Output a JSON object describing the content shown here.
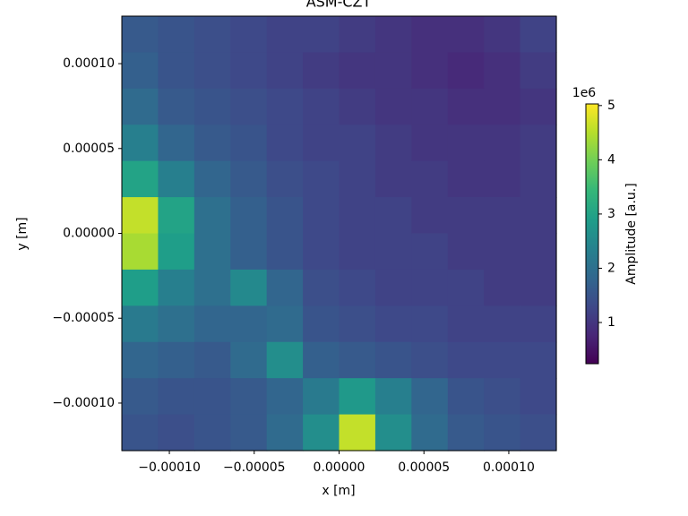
{
  "chart_data": {
    "type": "heatmap",
    "title": "ASM-CZT",
    "x_label": "x [m]",
    "y_label": "y [m]",
    "xlim": [
      -0.000128,
      0.000128
    ],
    "ylim": [
      -0.000128,
      0.000128
    ],
    "xticks": [
      {
        "value": -0.0001,
        "label": "−0.00010"
      },
      {
        "value": -5e-05,
        "label": "−0.00005"
      },
      {
        "value": 0,
        "label": "0.00000"
      },
      {
        "value": 5e-05,
        "label": "0.00005"
      },
      {
        "value": 0.0001,
        "label": "0.00010"
      }
    ],
    "yticks": [
      {
        "value": -0.0001,
        "label": "−0.00010"
      },
      {
        "value": -5e-05,
        "label": "−0.00005"
      },
      {
        "value": 0,
        "label": "0.00000"
      },
      {
        "value": 5e-05,
        "label": "0.00005"
      },
      {
        "value": 0.0001,
        "label": "0.00010"
      }
    ],
    "colormap": "viridis",
    "colorbar_label": "Amplitude [a.u.]",
    "colorbar_offset": "1e6",
    "clim": [
      0.24,
      5.03
    ],
    "cticks": [
      1,
      2,
      3,
      4,
      5
    ],
    "z": [
      [
        1.6,
        1.5,
        1.4,
        1.3,
        1.2,
        1.2,
        1.1,
        1.0,
        0.9,
        0.9,
        1.0,
        1.2
      ],
      [
        1.7,
        1.5,
        1.4,
        1.3,
        1.2,
        1.1,
        1.0,
        1.0,
        0.9,
        0.8,
        0.9,
        1.1
      ],
      [
        1.9,
        1.6,
        1.5,
        1.4,
        1.3,
        1.2,
        1.1,
        1.0,
        1.0,
        0.9,
        0.9,
        1.0
      ],
      [
        2.3,
        1.8,
        1.6,
        1.5,
        1.3,
        1.2,
        1.2,
        1.1,
        1.0,
        1.0,
        1.0,
        1.1
      ],
      [
        3.0,
        2.3,
        1.8,
        1.6,
        1.4,
        1.3,
        1.2,
        1.1,
        1.1,
        1.0,
        1.0,
        1.1
      ],
      [
        4.6,
        3.0,
        2.0,
        1.7,
        1.5,
        1.3,
        1.2,
        1.2,
        1.1,
        1.1,
        1.1,
        1.1
      ],
      [
        4.4,
        2.9,
        2.0,
        1.7,
        1.5,
        1.3,
        1.2,
        1.2,
        1.2,
        1.1,
        1.1,
        1.1
      ],
      [
        2.9,
        2.3,
        2.0,
        2.5,
        1.8,
        1.4,
        1.3,
        1.2,
        1.2,
        1.2,
        1.1,
        1.1
      ],
      [
        2.2,
        2.0,
        1.8,
        1.8,
        1.9,
        1.5,
        1.4,
        1.3,
        1.3,
        1.2,
        1.2,
        1.2
      ],
      [
        1.8,
        1.7,
        1.6,
        1.9,
        2.6,
        1.7,
        1.6,
        1.5,
        1.4,
        1.3,
        1.3,
        1.3
      ],
      [
        1.6,
        1.5,
        1.5,
        1.6,
        1.8,
        2.2,
        2.8,
        2.3,
        1.8,
        1.5,
        1.4,
        1.3
      ],
      [
        1.5,
        1.4,
        1.5,
        1.6,
        1.9,
        2.6,
        4.6,
        2.6,
        1.9,
        1.6,
        1.5,
        1.4
      ]
    ]
  }
}
